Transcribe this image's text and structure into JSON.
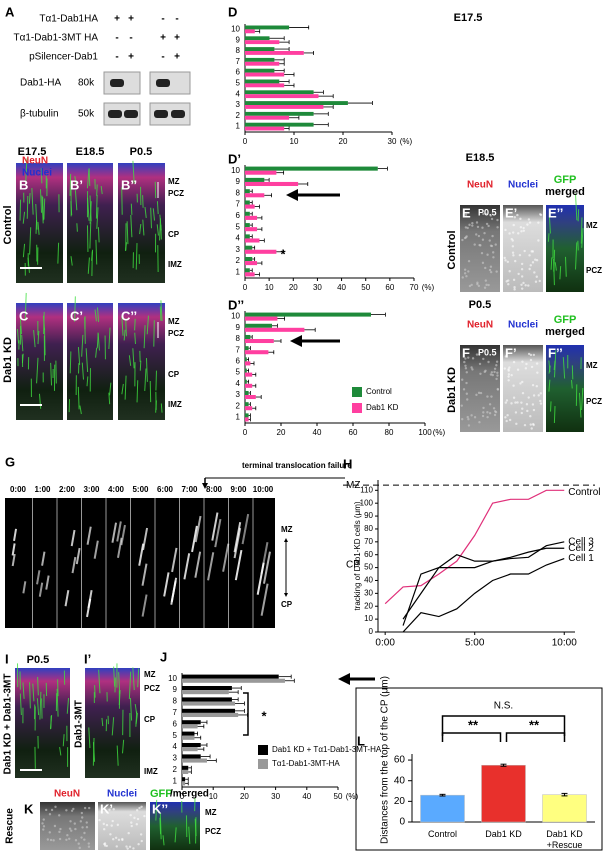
{
  "panel_labels": [
    "A",
    "B",
    "B’",
    "B’’",
    "C",
    "C’",
    "C’’",
    "D",
    "D’",
    "D’’",
    "E",
    "E’",
    "E’’",
    "F",
    "F’",
    "F’’",
    "G",
    "H",
    "I",
    "I’",
    "J",
    "K",
    "K’",
    "K’’",
    "L"
  ],
  "blot": {
    "rows": [
      {
        "label": "Tα1-Dab1HA",
        "signs": [
          "+",
          "+",
          "-",
          "-"
        ]
      },
      {
        "label": "Tα1-Dab1-3MT HA",
        "signs": [
          "-",
          "-",
          "+",
          "+"
        ]
      },
      {
        "label": "pSilencer-Dab1",
        "signs": [
          "-",
          "+",
          "-",
          "+"
        ]
      }
    ],
    "bands": [
      {
        "label": "Dab1-HA",
        "size": "80k"
      },
      {
        "label": "β-tubulin",
        "size": "50k"
      }
    ]
  },
  "bc": {
    "stages": [
      "E17.5",
      "E18.5",
      "P0.5"
    ],
    "stains": [
      "NeuN",
      "Nuclei"
    ],
    "row_labels": [
      "Control",
      "Dab1 KD"
    ],
    "zones_b": [
      "MZ",
      "PCZ",
      "CP",
      "IMZ"
    ],
    "zones_c": [
      "MZ",
      "PCZ",
      "CP",
      "IMZ"
    ]
  },
  "ef": {
    "headers_e": [
      "NeuN",
      "Nuclei",
      "GFP",
      "merged"
    ],
    "headers_f": [
      "NeuN",
      "Nuclei",
      "GFP",
      "merged"
    ],
    "stage_e": "P0.5",
    "stage_f": "P0.5",
    "row_labels": [
      "Control",
      "Dab1 KD"
    ],
    "zones_e": [
      "MZ",
      "PCZ"
    ],
    "zones_f": [
      "MZ",
      "PCZ"
    ]
  },
  "g": {
    "title": "terminal translocation failure",
    "times": [
      "0:00",
      "1:00",
      "2:00",
      "3:00",
      "4:00",
      "5:00",
      "6:00",
      "7:00",
      "8:00",
      "9:00",
      "10:00"
    ],
    "zones": [
      "MZ",
      "CP"
    ]
  },
  "i": {
    "stage": "P0.5",
    "row_labels": [
      "Dab1 KD + Dab1-3MT",
      "Dab1-3MT"
    ],
    "zones": [
      "MZ",
      "PCZ",
      "CP",
      "IMZ"
    ]
  },
  "k": {
    "headers": [
      "NeuN",
      "Nuclei",
      "GFP",
      "/merged"
    ],
    "row_label": "Rescue",
    "zones": [
      "MZ",
      "PCZ"
    ]
  },
  "chart_data": [
    {
      "type": "hbar",
      "title": "E17.5",
      "categories": [
        "1",
        "2",
        "3",
        "4",
        "5",
        "6",
        "7",
        "8",
        "9",
        "10"
      ],
      "xlim": [
        0,
        30
      ],
      "xticks": [
        0,
        10,
        20,
        30
      ],
      "x_unit": "(%)",
      "series": [
        {
          "color": "#1e8a3a",
          "values": [
            14,
            14,
            21,
            14,
            7,
            6,
            6,
            6,
            5,
            9
          ],
          "errors": [
            3,
            3,
            5,
            2,
            2,
            2,
            2,
            3,
            3,
            4
          ]
        },
        {
          "color": "#ff3fa0",
          "values": [
            8,
            9,
            16,
            15,
            8,
            8,
            7,
            12,
            7,
            2
          ],
          "errors": [
            1,
            2,
            2,
            3,
            2,
            2,
            1,
            2,
            2,
            1
          ]
        }
      ]
    },
    {
      "type": "hbar",
      "title": "E18.5",
      "categories": [
        "1",
        "2",
        "3",
        "4",
        "5",
        "6",
        "7",
        "8",
        "9",
        "10"
      ],
      "xlim": [
        0,
        70
      ],
      "xticks": [
        0,
        10,
        20,
        30,
        40,
        50,
        60,
        70
      ],
      "x_unit": "(%)",
      "annotation": "*",
      "series": [
        {
          "color": "#1e8a3a",
          "values": [
            2,
            3,
            3,
            2,
            2,
            2,
            2,
            2,
            8,
            55
          ],
          "errors": [
            1,
            1,
            1,
            1,
            1,
            1,
            1,
            1,
            2,
            4
          ]
        },
        {
          "color": "#ff3fa0",
          "values": [
            4,
            5,
            13,
            6,
            5,
            5,
            4,
            8,
            22,
            13
          ],
          "errors": [
            2,
            2,
            3,
            2,
            2,
            2,
            2,
            3,
            4,
            3
          ]
        }
      ]
    },
    {
      "type": "hbar",
      "title": "P0.5",
      "categories": [
        "1",
        "2",
        "3",
        "4",
        "5",
        "6",
        "7",
        "8",
        "9",
        "10"
      ],
      "xlim": [
        0,
        100
      ],
      "xticks": [
        0,
        20,
        40,
        60,
        80,
        100
      ],
      "x_unit": "(%)",
      "legend": "lower-right",
      "series": [
        {
          "name": "Control",
          "color": "#1e8a3a",
          "values": [
            2,
            2,
            2,
            1,
            1,
            1,
            2,
            3,
            15,
            70
          ],
          "errors": [
            1,
            1,
            1,
            1,
            1,
            1,
            1,
            1,
            3,
            8
          ]
        },
        {
          "name": "Dab1 KD",
          "color": "#ff3fa0",
          "values": [
            2,
            4,
            6,
            4,
            4,
            3,
            13,
            16,
            33,
            18
          ],
          "errors": [
            1,
            2,
            3,
            2,
            2,
            2,
            3,
            4,
            6,
            4
          ]
        }
      ]
    },
    {
      "type": "line",
      "y_label": "tracking of Dab1-KD cells (μm)",
      "zone_labels": [
        "MZ",
        "CP"
      ],
      "x": [
        0,
        1,
        2,
        3,
        4,
        5,
        6,
        7,
        8,
        9,
        10
      ],
      "xlim": [
        -0.4,
        10.6
      ],
      "xticks": [
        {
          "value": 0,
          "label": "0:00"
        },
        {
          "value": 5,
          "label": "5:00"
        },
        {
          "value": 10,
          "label": "10:00"
        }
      ],
      "ylim": [
        0,
        118
      ],
      "yticks": [
        0,
        10,
        20,
        30,
        40,
        50,
        60,
        70,
        80,
        90,
        100,
        110
      ],
      "mz_line": 114,
      "series": [
        {
          "name": "Control",
          "color": "#e0307a",
          "values": [
            22,
            35,
            36,
            45,
            55,
            75,
            100,
            103,
            103,
            110,
            110
          ]
        },
        {
          "name": "Cell 3",
          "color": "#000000",
          "values": [
            null,
            5,
            45,
            50,
            60,
            55,
            55,
            57,
            58,
            67,
            70
          ]
        },
        {
          "name": "Cell 2",
          "color": "#000000",
          "values": [
            null,
            10,
            30,
            50,
            50,
            50,
            55,
            58,
            62,
            65,
            65
          ]
        },
        {
          "name": "Cell 1",
          "color": "#000000",
          "values": [
            null,
            0,
            15,
            12,
            18,
            30,
            40,
            45,
            45,
            52,
            57
          ]
        }
      ]
    },
    {
      "type": "hbar",
      "categories": [
        "1",
        "2",
        "3",
        "4",
        "5",
        "6",
        "7",
        "8",
        "9",
        "10"
      ],
      "xlim": [
        0,
        50
      ],
      "xticks": [
        0,
        10,
        20,
        30,
        40,
        50
      ],
      "x_unit": "(%)",
      "annotation": "*",
      "legend": "lower-right",
      "series": [
        {
          "name": "Dab1 KD + Tα1-Dab1-3MT-HA",
          "color": "#000000",
          "values": [
            1,
            2,
            6,
            6,
            4,
            6,
            17,
            16,
            16,
            31
          ],
          "errors": [
            1,
            1,
            3,
            2,
            1,
            2,
            3,
            2,
            3,
            4
          ]
        },
        {
          "name": "Tα1-Dab1-3MT-HA",
          "color": "#999999",
          "values": [
            1,
            2,
            8,
            5,
            4,
            5,
            18,
            17,
            15,
            33
          ],
          "errors": [
            1,
            1,
            3,
            2,
            2,
            2,
            3,
            3,
            3,
            3
          ]
        }
      ]
    },
    {
      "type": "bar",
      "y_label": "Distances from the top of the CP (μm)",
      "categories": [
        "Control",
        "Dab1 KD",
        "Dab1 KD\n+Rescue"
      ],
      "values": [
        26,
        55,
        26.5
      ],
      "errors": [
        0.8,
        1,
        1.2
      ],
      "colors": [
        "#5aaaff",
        "#e8302c",
        "#ffff80"
      ],
      "ylim": [
        0,
        62
      ],
      "yticks": [
        0,
        20,
        40,
        60
      ],
      "annotations": [
        "**",
        "**",
        "N.S."
      ]
    }
  ]
}
